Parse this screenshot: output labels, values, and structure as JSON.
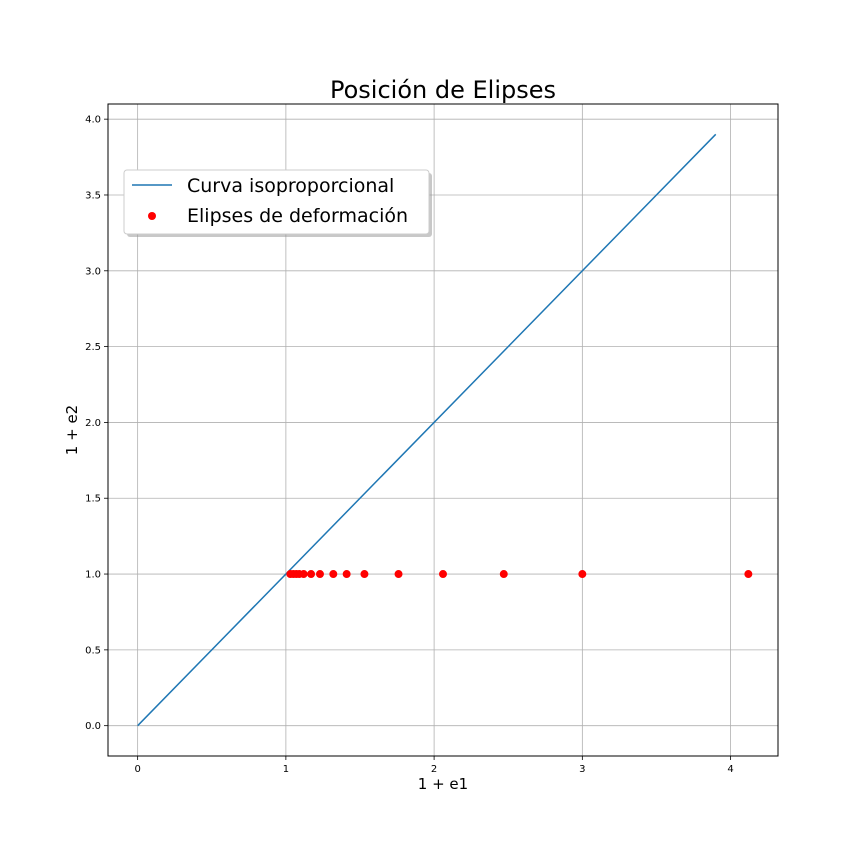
{
  "chart_data": {
    "type": "scatter",
    "title": "Posición de Elipses",
    "xlabel": "1 + e1",
    "ylabel": "1 + e2",
    "xlim": [
      -0.2,
      4.32
    ],
    "ylim": [
      -0.2,
      4.1
    ],
    "xticks": [
      0,
      1,
      2,
      3,
      4
    ],
    "yticks": [
      0.0,
      0.5,
      1.0,
      1.5,
      2.0,
      2.5,
      3.0,
      3.5,
      4.0
    ],
    "xtick_labels": [
      "0",
      "1",
      "2",
      "3",
      "4"
    ],
    "ytick_labels": [
      "0.0",
      "0.5",
      "1.0",
      "1.5",
      "2.0",
      "2.5",
      "3.0",
      "3.5",
      "4.0"
    ],
    "grid": true,
    "legend_position": "upper-left",
    "series": [
      {
        "name": "Curva isoproporcional",
        "kind": "line",
        "color": "#1f77b4",
        "x": [
          0,
          3.9
        ],
        "y": [
          0,
          3.9
        ]
      },
      {
        "name": "Elipses de deformación",
        "kind": "scatter",
        "color": "#ff0000",
        "x": [
          1.03,
          1.05,
          1.07,
          1.09,
          1.12,
          1.17,
          1.23,
          1.32,
          1.41,
          1.53,
          1.76,
          2.06,
          2.47,
          3.0,
          4.12
        ],
        "y": [
          1.0,
          1.0,
          1.0,
          1.0,
          1.0,
          1.0,
          1.0,
          1.0,
          1.0,
          1.0,
          1.0,
          1.0,
          1.0,
          1.0,
          1.0
        ]
      }
    ]
  }
}
